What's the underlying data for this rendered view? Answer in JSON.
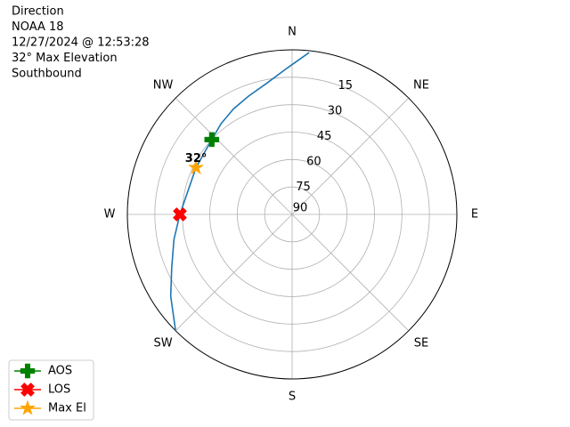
{
  "chart_data": {
    "type": "polar",
    "title_lines": [
      "Direction",
      "NOAA 18",
      "12/27/2024 @ 12:53:28",
      "32° Max Elevation",
      "Southbound"
    ],
    "theta_ticks": [
      {
        "value": 0,
        "label": "N"
      },
      {
        "value": 45,
        "label": "NE"
      },
      {
        "value": 90,
        "label": "E"
      },
      {
        "value": 135,
        "label": "SE"
      },
      {
        "value": 180,
        "label": "S"
      },
      {
        "value": 225,
        "label": "SW"
      },
      {
        "value": 270,
        "label": "W"
      },
      {
        "value": 315,
        "label": "NW"
      }
    ],
    "rlim": [
      90,
      0
    ],
    "rticks": [
      15,
      30,
      45,
      60,
      75,
      90
    ],
    "grid": true,
    "legend": "lower left",
    "series": [
      {
        "color": "#1f77b4",
        "x": [
          6,
          358,
          349,
          340,
          331,
          322,
          313,
          296,
          270,
          258,
          246,
          236,
          225
        ],
        "values": [
          1,
          10,
          17,
          21,
          24,
          27,
          30,
          31.6,
          28.7,
          24,
          18,
          10,
          0
        ]
      },
      {
        "name": "AOS",
        "color": "#008000",
        "marker": "plus",
        "x": [
          313
        ],
        "values": [
          30
        ]
      },
      {
        "name": "LOS",
        "color": "#ff0000",
        "marker": "x",
        "x": [
          270
        ],
        "values": [
          28.7
        ]
      },
      {
        "name": "Max El",
        "color": "#ffa500",
        "marker": "star",
        "x": [
          296
        ],
        "values": [
          31.6
        ]
      }
    ],
    "annotation": "32°"
  }
}
